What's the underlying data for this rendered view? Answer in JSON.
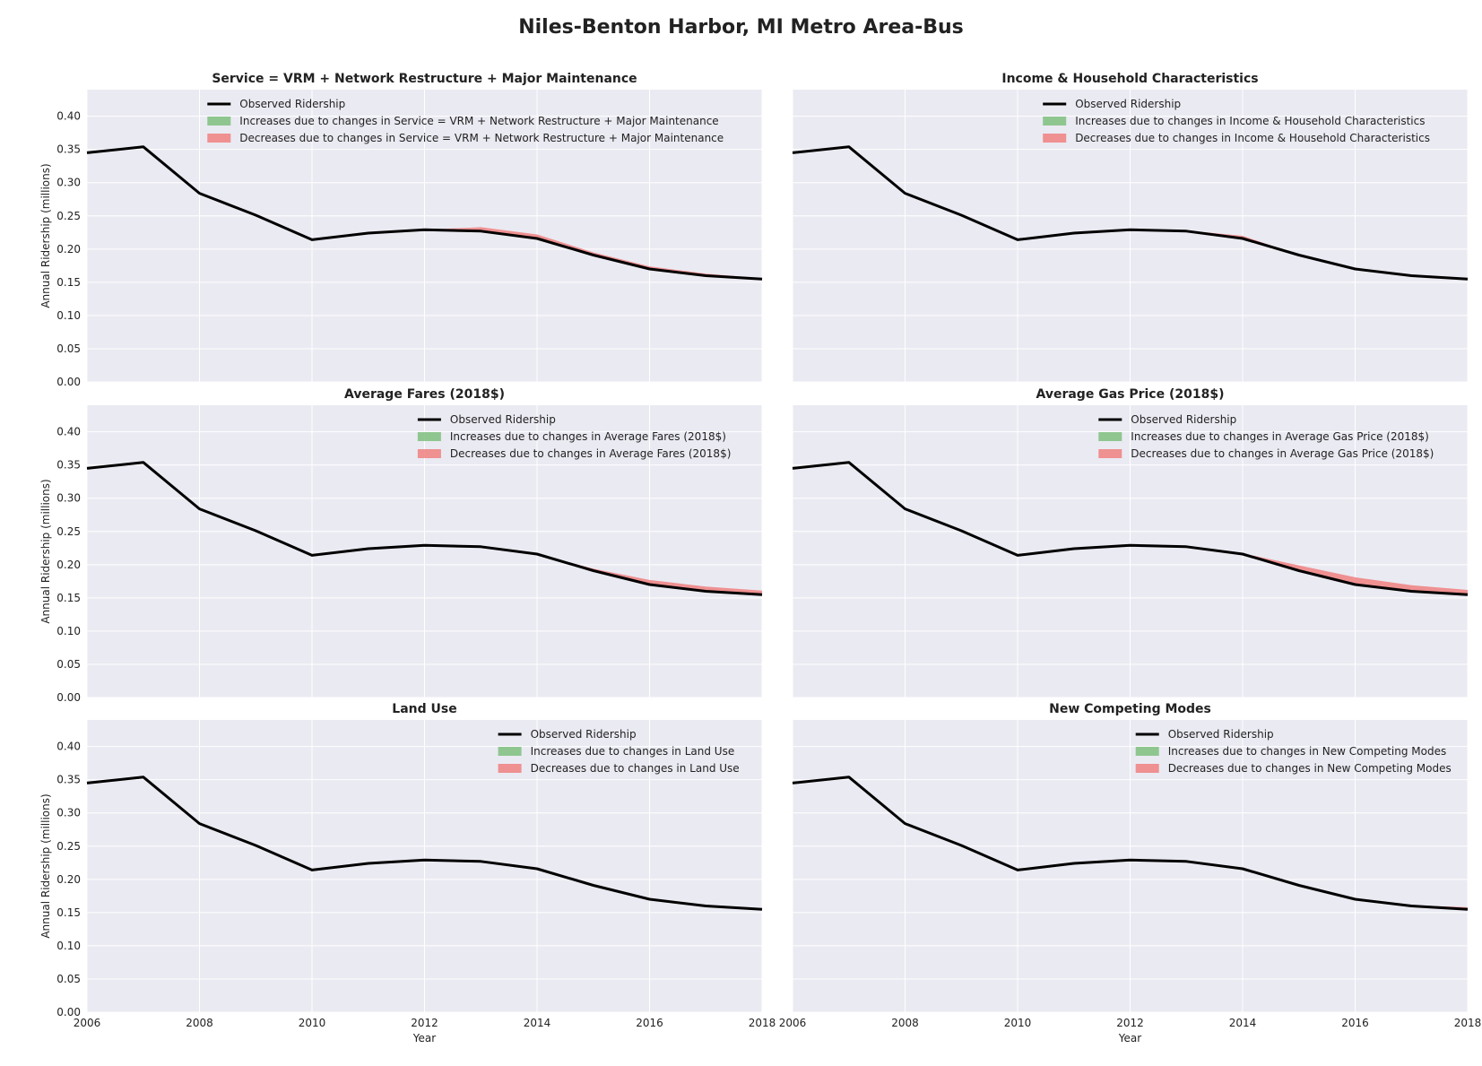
{
  "title": "Niles-Benton Harbor, MI Metro Area-Bus",
  "colors": {
    "observed": "#000000",
    "increase": "#7fbf7f",
    "decrease": "#f08080",
    "plot_bg": "#eaeaf2",
    "grid": "#ffffff"
  },
  "chart_data": [
    {
      "type": "area",
      "title": "Service = VRM + Network Restructure + Major Maintenance",
      "xlabel": "",
      "ylabel": "Annual Ridership (millions)",
      "xlim": [
        2006,
        2018
      ],
      "ylim": [
        0,
        0.44
      ],
      "grid": true,
      "legend_placement": "top-right",
      "legend": [
        "Observed Ridership",
        "Increases due to changes in Service = VRM + Network Restructure + Major Maintenance",
        "Decreases due to changes in Service = VRM + Network Restructure + Major Maintenance"
      ],
      "x": [
        2006,
        2007,
        2008,
        2009,
        2010,
        2011,
        2012,
        2013,
        2014,
        2015,
        2016,
        2017,
        2018
      ],
      "series": [
        {
          "name": "Observed Ridership",
          "values": [
            0.345,
            0.354,
            0.284,
            0.251,
            0.214,
            0.224,
            0.229,
            0.227,
            0.216,
            0.191,
            0.17,
            0.16,
            0.155
          ]
        },
        {
          "name": "Increases due to changes in Service = VRM + Network Restructure + Major Maintenance",
          "values": [
            0.345,
            0.354,
            0.284,
            0.251,
            0.214,
            0.224,
            0.229,
            0.227,
            0.216,
            0.191,
            0.17,
            0.16,
            0.155
          ]
        },
        {
          "name": "Decreases due to changes in Service = VRM + Network Restructure + Major Maintenance",
          "values": [
            0.345,
            0.354,
            0.284,
            0.251,
            0.214,
            0.224,
            0.229,
            0.233,
            0.222,
            0.195,
            0.174,
            0.163,
            0.156
          ]
        }
      ]
    },
    {
      "type": "area",
      "title": "Income & Household Characteristics",
      "xlabel": "",
      "ylabel": "",
      "xlim": [
        2006,
        2018
      ],
      "ylim": [
        0,
        0.44
      ],
      "grid": true,
      "legend_placement": "top-right",
      "legend": [
        "Observed Ridership",
        "Increases due to changes in Income & Household Characteristics",
        "Decreases due to changes in Income & Household Characteristics"
      ],
      "x": [
        2006,
        2007,
        2008,
        2009,
        2010,
        2011,
        2012,
        2013,
        2014,
        2015,
        2016,
        2017,
        2018
      ],
      "series": [
        {
          "name": "Observed Ridership",
          "values": [
            0.345,
            0.354,
            0.284,
            0.251,
            0.214,
            0.224,
            0.229,
            0.227,
            0.216,
            0.191,
            0.17,
            0.16,
            0.155
          ]
        },
        {
          "name": "Increases due to changes in Income & Household Characteristics",
          "values": [
            0.345,
            0.354,
            0.284,
            0.251,
            0.214,
            0.224,
            0.229,
            0.227,
            0.216,
            0.191,
            0.17,
            0.16,
            0.155
          ]
        },
        {
          "name": "Decreases due to changes in Income & Household Characteristics",
          "values": [
            0.345,
            0.354,
            0.284,
            0.251,
            0.214,
            0.224,
            0.229,
            0.228,
            0.22,
            0.191,
            0.17,
            0.16,
            0.155
          ]
        }
      ]
    },
    {
      "type": "area",
      "title": "Average Fares (2018$)",
      "xlabel": "",
      "ylabel": "Annual Ridership (millions)",
      "xlim": [
        2006,
        2018
      ],
      "ylim": [
        0,
        0.44
      ],
      "grid": true,
      "legend_placement": "top-right",
      "legend": [
        "Observed Ridership",
        "Increases due to changes in Average Fares (2018$)",
        "Decreases due to changes in Average Fares (2018$)"
      ],
      "x": [
        2006,
        2007,
        2008,
        2009,
        2010,
        2011,
        2012,
        2013,
        2014,
        2015,
        2016,
        2017,
        2018
      ],
      "series": [
        {
          "name": "Observed Ridership",
          "values": [
            0.345,
            0.354,
            0.284,
            0.251,
            0.214,
            0.224,
            0.229,
            0.227,
            0.216,
            0.191,
            0.17,
            0.16,
            0.155
          ]
        },
        {
          "name": "Increases due to changes in Average Fares (2018$)",
          "values": [
            0.345,
            0.354,
            0.284,
            0.251,
            0.214,
            0.224,
            0.229,
            0.227,
            0.216,
            0.191,
            0.17,
            0.16,
            0.155
          ]
        },
        {
          "name": "Decreases due to changes in Average Fares (2018$)",
          "values": [
            0.345,
            0.354,
            0.284,
            0.251,
            0.214,
            0.224,
            0.229,
            0.227,
            0.216,
            0.194,
            0.177,
            0.167,
            0.161
          ]
        }
      ]
    },
    {
      "type": "area",
      "title": "Average Gas Price (2018$)",
      "xlabel": "",
      "ylabel": "",
      "xlim": [
        2006,
        2018
      ],
      "ylim": [
        0,
        0.44
      ],
      "grid": true,
      "legend_placement": "top-right",
      "legend": [
        "Observed Ridership",
        "Increases due to changes in Average Gas Price (2018$)",
        "Decreases due to changes in Average Gas Price (2018$)"
      ],
      "x": [
        2006,
        2007,
        2008,
        2009,
        2010,
        2011,
        2012,
        2013,
        2014,
        2015,
        2016,
        2017,
        2018
      ],
      "series": [
        {
          "name": "Observed Ridership",
          "values": [
            0.345,
            0.354,
            0.284,
            0.251,
            0.214,
            0.224,
            0.229,
            0.227,
            0.216,
            0.191,
            0.17,
            0.16,
            0.155
          ]
        },
        {
          "name": "Increases due to changes in Average Gas Price (2018$)",
          "values": [
            0.345,
            0.354,
            0.284,
            0.251,
            0.214,
            0.224,
            0.229,
            0.227,
            0.216,
            0.191,
            0.17,
            0.16,
            0.155
          ]
        },
        {
          "name": "Decreases due to changes in Average Gas Price (2018$)",
          "values": [
            0.345,
            0.354,
            0.284,
            0.251,
            0.214,
            0.224,
            0.229,
            0.227,
            0.217,
            0.199,
            0.181,
            0.169,
            0.162
          ]
        }
      ]
    },
    {
      "type": "area",
      "title": "Land Use",
      "xlabel": "Year",
      "ylabel": "Annual Ridership (millions)",
      "xlim": [
        2006,
        2018
      ],
      "ylim": [
        0,
        0.44
      ],
      "grid": true,
      "legend_placement": "top-right",
      "legend": [
        "Observed Ridership",
        "Increases due to changes in Land Use",
        "Decreases due to changes in Land Use"
      ],
      "x": [
        2006,
        2007,
        2008,
        2009,
        2010,
        2011,
        2012,
        2013,
        2014,
        2015,
        2016,
        2017,
        2018
      ],
      "series": [
        {
          "name": "Observed Ridership",
          "values": [
            0.345,
            0.354,
            0.284,
            0.251,
            0.214,
            0.224,
            0.229,
            0.227,
            0.216,
            0.191,
            0.17,
            0.16,
            0.155
          ]
        },
        {
          "name": "Increases due to changes in Land Use",
          "values": [
            0.345,
            0.354,
            0.284,
            0.251,
            0.214,
            0.224,
            0.229,
            0.227,
            0.216,
            0.191,
            0.17,
            0.16,
            0.155
          ]
        },
        {
          "name": "Decreases due to changes in Land Use",
          "values": [
            0.345,
            0.354,
            0.284,
            0.251,
            0.214,
            0.224,
            0.229,
            0.227,
            0.216,
            0.191,
            0.17,
            0.16,
            0.155
          ]
        }
      ]
    },
    {
      "type": "area",
      "title": "New Competing Modes",
      "xlabel": "Year",
      "ylabel": "",
      "xlim": [
        2006,
        2018
      ],
      "ylim": [
        0,
        0.44
      ],
      "grid": true,
      "legend_placement": "top-right",
      "legend": [
        "Observed Ridership",
        "Increases due to changes in New Competing Modes",
        "Decreases due to changes in New Competing Modes"
      ],
      "x": [
        2006,
        2007,
        2008,
        2009,
        2010,
        2011,
        2012,
        2013,
        2014,
        2015,
        2016,
        2017,
        2018
      ],
      "series": [
        {
          "name": "Observed Ridership",
          "values": [
            0.345,
            0.354,
            0.284,
            0.251,
            0.214,
            0.224,
            0.229,
            0.227,
            0.216,
            0.191,
            0.17,
            0.16,
            0.155
          ]
        },
        {
          "name": "Increases due to changes in New Competing Modes",
          "values": [
            0.345,
            0.354,
            0.284,
            0.251,
            0.214,
            0.224,
            0.229,
            0.227,
            0.216,
            0.191,
            0.17,
            0.16,
            0.155
          ]
        },
        {
          "name": "Decreases due to changes in New Competing Modes",
          "values": [
            0.345,
            0.354,
            0.284,
            0.251,
            0.214,
            0.224,
            0.229,
            0.227,
            0.216,
            0.191,
            0.17,
            0.161,
            0.158
          ]
        }
      ]
    }
  ],
  "y_ticks": [
    "0.00",
    "0.05",
    "0.10",
    "0.15",
    "0.20",
    "0.25",
    "0.30",
    "0.35",
    "0.40"
  ],
  "x_ticks": [
    "2006",
    "2008",
    "2010",
    "2012",
    "2014",
    "2016",
    "2018"
  ]
}
